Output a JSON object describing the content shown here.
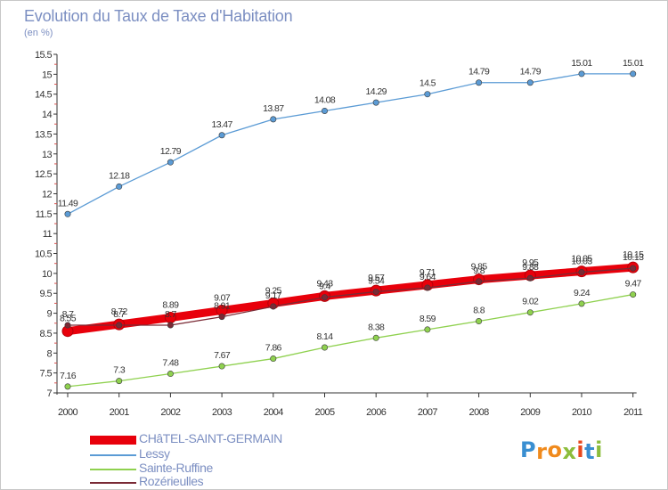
{
  "title": "Evolution du Taux de Taxe d'Habitation",
  "unit": "(en %)",
  "logo": {
    "text": "Proxiti",
    "letter_colors": [
      "#3a8fd1",
      "#f08a1c",
      "#f08a1c",
      "#8cbd3c",
      "#e8491d",
      "#3a8fd1",
      "#8cbd3c"
    ]
  },
  "chart_data": {
    "type": "line",
    "title": "Evolution du Taux de Taxe d'Habitation",
    "ylabel": "(en %)",
    "xlabel": "",
    "x": [
      "2000",
      "2001",
      "2002",
      "2003",
      "2004",
      "2005",
      "2006",
      "2007",
      "2008",
      "2009",
      "2010",
      "2011"
    ],
    "ylim": [
      7,
      15.5
    ],
    "yticks": [
      "7",
      "7.5",
      "8",
      "8.5",
      "9",
      "9.5",
      "10",
      "10.5",
      "11",
      "11.5",
      "12",
      "12.5",
      "13",
      "13.5",
      "14",
      "14.5",
      "15",
      "15.5"
    ],
    "grid": false,
    "legend_position": "bottom-left",
    "series": [
      {
        "name": "CHâTEL-SAINT-GERMAIN",
        "color": "#e8000b",
        "values": [
          8.55,
          8.72,
          8.89,
          9.07,
          9.25,
          9.43,
          9.57,
          9.71,
          9.85,
          9.95,
          10.05,
          10.15
        ],
        "labels": [
          "8.55",
          "8.72",
          "8.89",
          "9.07",
          "9.25",
          "9.43",
          "9.57",
          "9.71",
          "9.85",
          "9.95",
          "10.05",
          "10.15"
        ]
      },
      {
        "name": "Lessy",
        "color": "#5b9bd5",
        "values": [
          11.49,
          12.18,
          12.79,
          13.47,
          13.87,
          14.08,
          14.29,
          14.5,
          14.79,
          14.79,
          15.01,
          15.01
        ],
        "labels": [
          "11.49",
          "12.18",
          "12.79",
          "13.47",
          "13.87",
          "14.08",
          "14.29",
          "14.5",
          "14.79",
          "14.79",
          "15.01",
          "15.01"
        ]
      },
      {
        "name": "Sainte-Ruffine",
        "color": "#8fd14f",
        "values": [
          7.16,
          7.3,
          7.48,
          7.67,
          7.86,
          8.14,
          8.38,
          8.59,
          8.8,
          9.02,
          9.24,
          9.47
        ],
        "labels": [
          "7.16",
          "7.3",
          "7.48",
          "7.67",
          "7.86",
          "8.14",
          "8.38",
          "8.59",
          "8.8",
          "9.02",
          "9.24",
          "9.47"
        ]
      },
      {
        "name": "Rozérieulles",
        "color": "#7a2a35",
        "values": [
          8.7,
          8.7,
          8.7,
          8.91,
          9.17,
          9.4,
          9.54,
          9.64,
          9.8,
          9.88,
          10.03,
          10.13
        ],
        "labels": [
          "8.7",
          "8.7",
          "8.7",
          "8.91",
          "9.17",
          "9.4",
          "9.54",
          "9.64",
          "9.8",
          "9.88",
          "10.03",
          "10.13"
        ]
      }
    ]
  }
}
